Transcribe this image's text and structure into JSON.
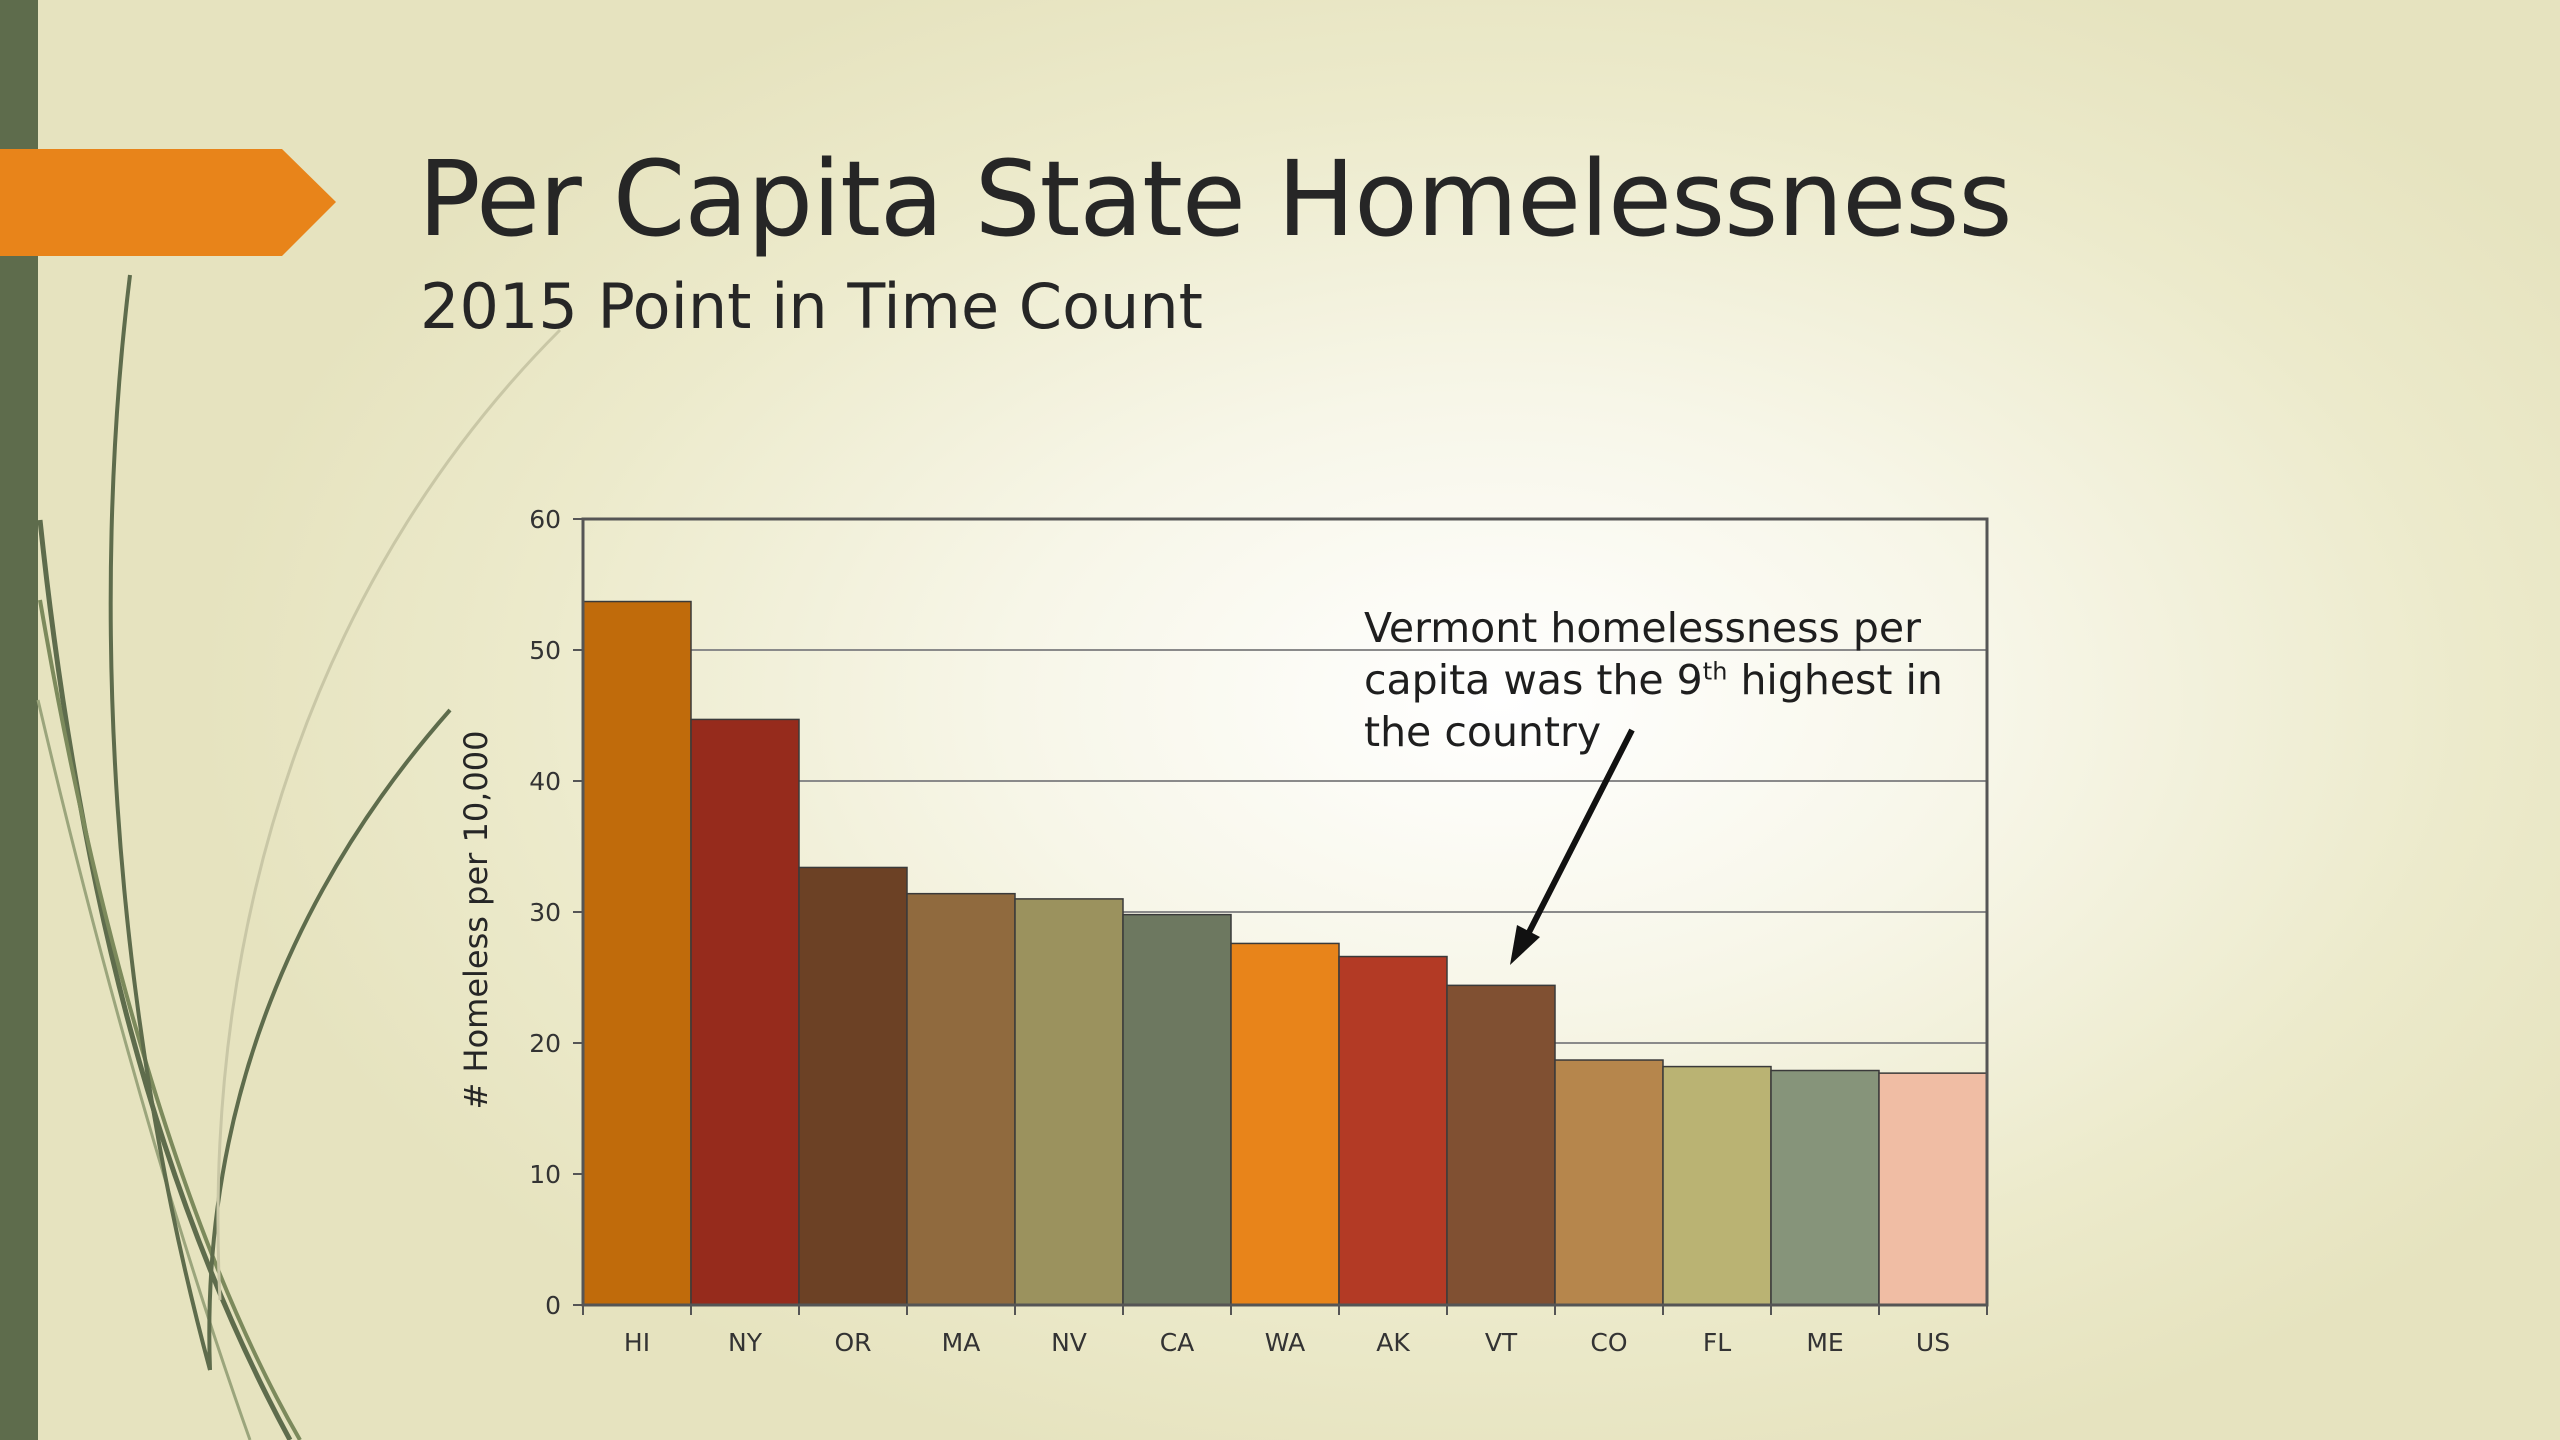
{
  "slide": {
    "title": "Per Capita State Homelessness",
    "subtitle": "2015 Point in Time Count",
    "accent_color": "#e8841a",
    "sidebar_color": "#5e6c4c"
  },
  "annotation": {
    "line1": "Vermont homelessness per",
    "line2_pre": "capita was the 9",
    "line2_sup": "th",
    "line2_post": " highest in",
    "line3": "the country",
    "target": "VT"
  },
  "chart_data": {
    "type": "bar",
    "title": "",
    "xlabel": "",
    "ylabel": "# Homeless per 10,000",
    "ylim": [
      0,
      60
    ],
    "yticks": [
      0,
      10,
      20,
      30,
      40,
      50,
      60
    ],
    "grid": true,
    "categories": [
      "HI",
      "NY",
      "OR",
      "MA",
      "NV",
      "CA",
      "WA",
      "AK",
      "VT",
      "CO",
      "FL",
      "ME",
      "US"
    ],
    "values": [
      53.7,
      44.7,
      33.4,
      31.4,
      31.0,
      29.8,
      27.6,
      26.6,
      24.4,
      18.7,
      18.2,
      17.9,
      17.7
    ],
    "colors": [
      "#c06b0b",
      "#962b1c",
      "#6c4125",
      "#906a3e",
      "#9b925e",
      "#6d7860",
      "#e8841a",
      "#b33a25",
      "#805032",
      "#b6864c",
      "#bab373",
      "#86947a",
      "#f0bda4"
    ]
  }
}
